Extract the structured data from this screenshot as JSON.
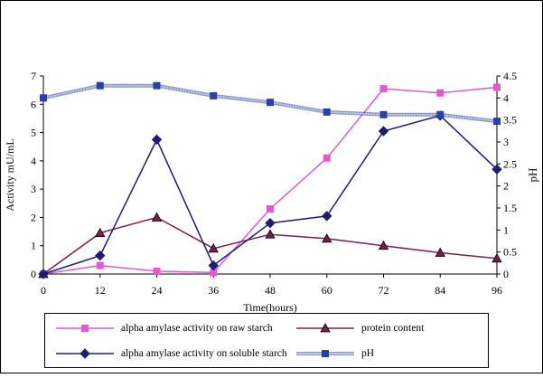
{
  "chart_data": {
    "type": "line",
    "title": "",
    "xlabel": "Time(hours)",
    "ylabel": "Activity mU/mL",
    "y2label": "pH",
    "x": [
      0,
      12,
      24,
      36,
      48,
      60,
      72,
      84,
      96
    ],
    "xlim": [
      0,
      96
    ],
    "ylim": [
      0,
      7
    ],
    "y2lim": [
      0,
      4.5
    ],
    "yticks": [
      0,
      1,
      2,
      3,
      4,
      5,
      6,
      7
    ],
    "y2ticks": [
      "0",
      "0.5",
      "1",
      "1.5",
      "2",
      "2.5",
      "3",
      "3.5",
      "4",
      "4.5"
    ],
    "grid": false,
    "legend_position": "bottom",
    "series": [
      {
        "name": "alpha amylase activity on raw starch",
        "axis": "left",
        "color": "#e25ad0",
        "marker": "square",
        "values": [
          0.0,
          0.3,
          0.1,
          0.05,
          2.3,
          4.1,
          6.55,
          6.4,
          6.6
        ]
      },
      {
        "name": "protein content",
        "axis": "left",
        "color": "#7b1e4f",
        "marker": "triangle",
        "values": [
          0.0,
          1.45,
          2.0,
          0.9,
          1.4,
          1.25,
          1.0,
          0.75,
          0.55
        ]
      },
      {
        "name": "alpha amylase activity on soluble starch",
        "axis": "left",
        "color": "#1e1e6e",
        "marker": "diamond",
        "values": [
          0.0,
          0.65,
          4.75,
          0.3,
          1.8,
          2.05,
          5.05,
          5.6,
          3.7
        ]
      },
      {
        "name": "pH",
        "axis": "right",
        "color": "#2a3fa8",
        "marker": "square",
        "values": [
          4.0,
          4.28,
          4.28,
          4.05,
          3.9,
          3.68,
          3.62,
          3.62,
          3.47
        ]
      }
    ]
  }
}
